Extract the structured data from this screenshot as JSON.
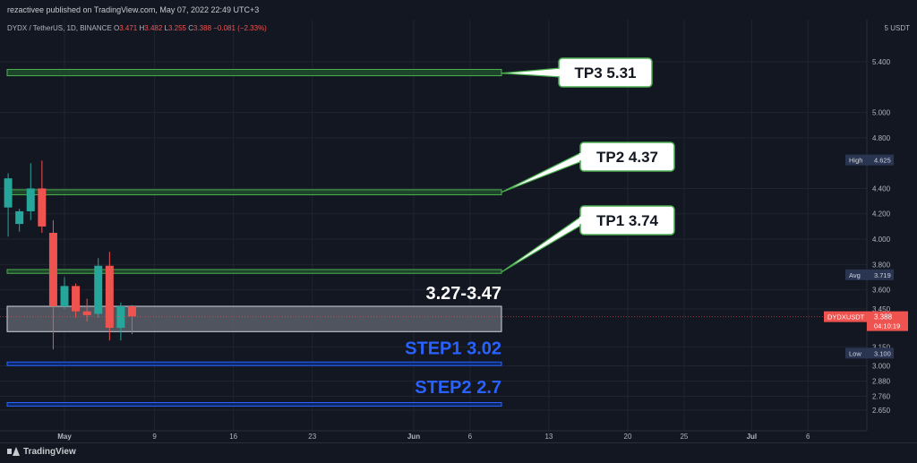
{
  "header": {
    "published": "rezactivee published on TradingView.com, May 07, 2022 22:49 UTC+3"
  },
  "chart_data": {
    "type": "candlestick",
    "symbol_line": {
      "name": "DYDX / TetherUS, 1D, BINANCE",
      "o_label": "O",
      "o": "3.471",
      "h_label": "H",
      "h": "3.482",
      "l_label": "L",
      "l": "3.255",
      "c_label": "C",
      "c": "3.388",
      "change": "−0.081 (−2.33%)"
    },
    "currency": "5 USDT",
    "y_ticks": [
      "5.400",
      "5.000",
      "4.800",
      "4.400",
      "4.200",
      "4.000",
      "3.800",
      "3.600",
      "3.450",
      "3.150",
      "3.000",
      "2.880",
      "2.760",
      "2.650"
    ],
    "y_tick_values": [
      5.4,
      5.0,
      4.8,
      4.4,
      4.2,
      4.0,
      3.8,
      3.6,
      3.45,
      3.15,
      3.0,
      2.88,
      2.76,
      2.65
    ],
    "x_ticks": [
      {
        "label": "May",
        "day": 0
      },
      {
        "label": "9",
        "day": 8
      },
      {
        "label": "16",
        "day": 15
      },
      {
        "label": "23",
        "day": 22
      },
      {
        "label": "Jun",
        "day": 31
      },
      {
        "label": "6",
        "day": 36
      },
      {
        "label": "13",
        "day": 43
      },
      {
        "label": "20",
        "day": 50
      },
      {
        "label": "25",
        "day": 55
      },
      {
        "label": "Jul",
        "day": 61
      },
      {
        "label": "6",
        "day": 66
      }
    ],
    "candles": [
      {
        "day": -5,
        "o": 4.25,
        "h": 4.52,
        "l": 4.02,
        "c": 4.48
      },
      {
        "day": -4,
        "o": 4.12,
        "h": 4.24,
        "l": 4.06,
        "c": 4.22
      },
      {
        "day": -3,
        "o": 4.22,
        "h": 4.6,
        "l": 4.15,
        "c": 4.4
      },
      {
        "day": -2,
        "o": 4.4,
        "h": 4.62,
        "l": 4.05,
        "c": 4.1
      },
      {
        "day": -1,
        "o": 4.05,
        "h": 4.15,
        "l": 3.13,
        "c": 3.47
      },
      {
        "day": 0,
        "o": 3.47,
        "h": 3.7,
        "l": 3.45,
        "c": 3.63
      },
      {
        "day": 1,
        "o": 3.63,
        "h": 3.65,
        "l": 3.38,
        "c": 3.43
      },
      {
        "day": 2,
        "o": 3.43,
        "h": 3.53,
        "l": 3.35,
        "c": 3.4
      },
      {
        "day": 3,
        "o": 3.41,
        "h": 3.85,
        "l": 3.38,
        "c": 3.79
      },
      {
        "day": 4,
        "o": 3.79,
        "h": 3.9,
        "l": 3.2,
        "c": 3.3
      },
      {
        "day": 5,
        "o": 3.3,
        "h": 3.5,
        "l": 3.2,
        "c": 3.47
      },
      {
        "day": 6,
        "o": 3.47,
        "h": 3.48,
        "l": 3.25,
        "c": 3.39
      }
    ],
    "zones": [
      {
        "low": 5.29,
        "high": 5.34,
        "color": "#1e4d2b",
        "border": "#4caf50"
      },
      {
        "low": 4.35,
        "high": 4.39,
        "color": "#1e4d2b",
        "border": "#4caf50"
      },
      {
        "low": 3.73,
        "high": 3.76,
        "color": "#1e4d2b",
        "border": "#4caf50"
      },
      {
        "low": 3.27,
        "high": 3.47,
        "color": "#5c5f69",
        "border": "#d1d4dc"
      },
      {
        "low": 3.01,
        "high": 3.03,
        "color": "#0d2a6e",
        "border": "#2962ff"
      },
      {
        "low": 2.69,
        "high": 2.71,
        "color": "#0d2a6e",
        "border": "#2962ff"
      }
    ],
    "annotations": [
      {
        "text": "TP3  5.31",
        "value": 5.31,
        "kind": "callout"
      },
      {
        "text": "TP2  4.37",
        "value": 4.37,
        "kind": "callout"
      },
      {
        "text": "TP1  3.74",
        "value": 3.74,
        "kind": "callout"
      },
      {
        "text": "3.27-3.47",
        "value": 3.47,
        "kind": "white"
      },
      {
        "text": "STEP1  3.02",
        "value": 3.02,
        "kind": "blue"
      },
      {
        "text": "STEP2  2.7",
        "value": 2.7,
        "kind": "blue"
      }
    ],
    "price_labels": [
      {
        "name": "High",
        "value": "4.625",
        "num": 4.625,
        "kind": "dark"
      },
      {
        "name": "Avg",
        "value": "3.719",
        "num": 3.719,
        "kind": "dark"
      },
      {
        "name": "Low",
        "value": "3.100",
        "num": 3.1,
        "kind": "dark"
      }
    ],
    "current": {
      "symbol": "DYDXUSDT",
      "price": "3.388",
      "num": 3.388,
      "countdown": "04:10:19"
    },
    "colors": {
      "up": "#26a69a",
      "down": "#ef5350",
      "bg": "#131722",
      "grid": "#1f2430",
      "axis_text": "#b2b5be"
    }
  },
  "footer": {
    "logo_text": "TradingView"
  }
}
